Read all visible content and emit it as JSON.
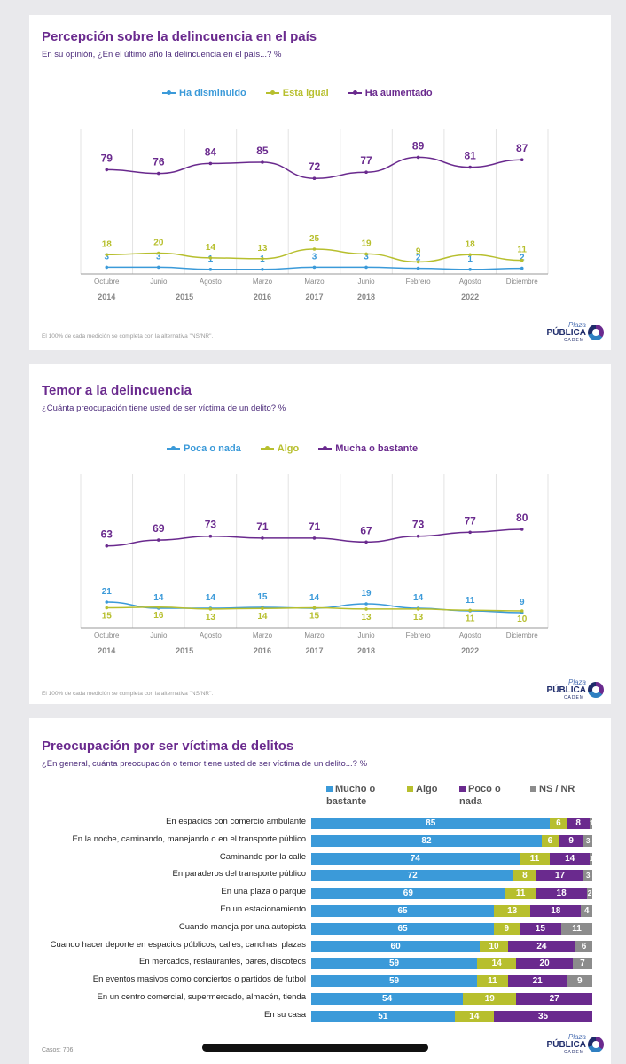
{
  "colors": {
    "blue": "#3b9ad9",
    "green": "#b7bf2e",
    "purple": "#6a2a8e",
    "gray": "#8c8c8c",
    "grid": "#e3e3e3",
    "axis": "#999999"
  },
  "p1": {
    "title": "Percepción sobre la delincuencia en el país",
    "subtitle": "En su opinión, ¿En el último año la delincuencia en el país...? %",
    "note": "El 100% de cada medición se completa con la alternativa \"NS/NR\".",
    "brand": {
      "top": "Plaza",
      "main": "PÚBLICA",
      "sub": "CADEM"
    }
  },
  "p2": {
    "title": "Temor a la delincuencia",
    "subtitle": "¿Cuánta preocupación tiene usted de ser víctima de un delito? %",
    "note": "El 100% de cada medición se completa con la alternativa \"NS/NR\".",
    "brand": {
      "top": "Plaza",
      "main": "PÚBLICA",
      "sub": "CADEM"
    }
  },
  "p3": {
    "title": "Preocupación por ser víctima de delitos",
    "subtitle": "¿En general, cuánta preocupación o temor tiene usted de ser víctima de un delito...? %",
    "casos": "Casos: 706",
    "brand": {
      "top": "Plaza",
      "main": "PÚBLICA",
      "sub": "CADEM"
    },
    "legend": [
      {
        "l1": "Mucho o",
        "l2": "bastante",
        "color": "#3b9ad9"
      },
      {
        "l1": "Algo",
        "l2": "",
        "color": "#b7bf2e"
      },
      {
        "l1": "Poco o",
        "l2": "nada",
        "color": "#6a2a8e"
      },
      {
        "l1": "NS / NR",
        "l2": "",
        "color": "#8c8c8c"
      }
    ]
  },
  "chart_data": [
    {
      "type": "line",
      "title": "Percepción sobre la delincuencia en el país",
      "categories": [
        "Octubre",
        "Junio",
        "Agosto",
        "Marzo",
        "Marzo",
        "Junio",
        "Febrero",
        "Agosto",
        "Diciembre"
      ],
      "year_labels": [
        "2014",
        "2015",
        "2016",
        "2017",
        "2018",
        "2022"
      ],
      "series": [
        {
          "name": "Ha disminuido",
          "values": [
            3,
            3,
            1,
            1,
            3,
            3,
            2,
            1,
            2
          ]
        },
        {
          "name": "Esta igual",
          "values": [
            18,
            20,
            14,
            13,
            25,
            19,
            9,
            18,
            11
          ]
        },
        {
          "name": "Ha aumentado",
          "values": [
            79,
            76,
            84,
            85,
            72,
            77,
            89,
            81,
            87
          ]
        }
      ]
    },
    {
      "type": "line",
      "title": "Temor a la delincuencia",
      "categories": [
        "Octubre",
        "Junio",
        "Agosto",
        "Marzo",
        "Marzo",
        "Junio",
        "Febrero",
        "Agosto",
        "Diciembre"
      ],
      "year_labels": [
        "2014",
        "2015",
        "2016",
        "2017",
        "2018",
        "2022"
      ],
      "series": [
        {
          "name": "Poca o nada",
          "values": [
            21,
            14,
            14,
            15,
            14,
            19,
            14,
            11,
            9
          ]
        },
        {
          "name": "Algo",
          "values": [
            15,
            16,
            13,
            14,
            15,
            13,
            13,
            11,
            10
          ]
        },
        {
          "name": "Mucha o bastante",
          "values": [
            63,
            69,
            73,
            71,
            71,
            67,
            73,
            77,
            80
          ]
        }
      ]
    },
    {
      "type": "bar",
      "stacked": true,
      "orientation": "horizontal",
      "title": "Preocupación por ser víctima de delitos",
      "categories": [
        "En espacios con comercio ambulante",
        "En la noche, caminando, manejando o en el transporte público",
        "Caminando por la calle",
        "En paraderos del transporte público",
        "En una plaza o parque",
        "En un estacionamiento",
        "Cuando maneja por una autopista",
        "Cuando hacer deporte en espacios públicos, calles, canchas, plazas",
        "En mercados, restaurantes, bares, discotecs",
        "En eventos masivos como conciertos o partidos de futbol",
        "En un centro comercial, supermercado, almacén, tienda",
        "En su casa"
      ],
      "series": [
        {
          "name": "Mucho o bastante",
          "values": [
            85,
            82,
            74,
            72,
            69,
            65,
            65,
            60,
            59,
            59,
            54,
            51
          ]
        },
        {
          "name": "Algo",
          "values": [
            6,
            6,
            11,
            8,
            11,
            13,
            9,
            10,
            14,
            11,
            19,
            14
          ]
        },
        {
          "name": "Poco o nada",
          "values": [
            8,
            9,
            14,
            17,
            18,
            18,
            15,
            24,
            20,
            21,
            27,
            35
          ]
        },
        {
          "name": "NS / NR",
          "values": [
            1,
            3,
            1,
            3,
            2,
            4,
            11,
            6,
            7,
            9,
            null,
            null
          ]
        }
      ]
    }
  ]
}
